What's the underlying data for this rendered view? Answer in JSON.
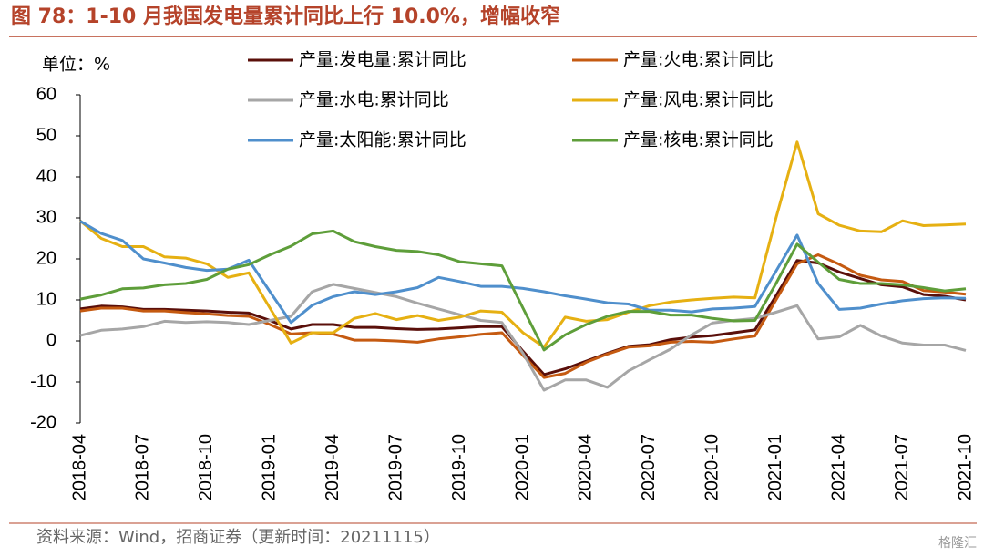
{
  "chart_data": {
    "type": "line",
    "title": "图 78：1-10 月我国发电量累计同比上行 10.0%，增幅收窄",
    "y_label": "单位：%",
    "source": "资料来源：Wind，招商证券（更新时间：20211115）",
    "watermark": "格隆汇",
    "ylim": [
      -20,
      60
    ],
    "yticks": [
      60,
      50,
      40,
      30,
      20,
      10,
      0,
      -10,
      -20
    ],
    "negative_tick_color": "#FF0000",
    "grid": false,
    "categories": [
      "2018-04",
      null,
      null,
      "2018-07",
      null,
      null,
      "2018-10",
      null,
      null,
      "2019-01",
      null,
      null,
      "2019-04",
      null,
      null,
      "2019-07",
      null,
      null,
      "2019-10",
      null,
      null,
      "2020-01",
      null,
      null,
      "2020-04",
      null,
      null,
      "2020-07",
      null,
      null,
      "2020-10",
      null,
      null,
      "2021-01",
      null,
      null,
      "2021-04",
      null,
      null,
      "2021-07",
      null,
      null,
      "2021-10"
    ],
    "series": [
      {
        "name": "产量:发电量:累计同比",
        "color": "#5A0F0A",
        "values": [
          7.8,
          8.5,
          8.3,
          7.7,
          7.7,
          7.5,
          7.3,
          7.0,
          6.8,
          5.0,
          2.9,
          4.0,
          4.0,
          3.3,
          3.3,
          3.0,
          2.8,
          2.9,
          3.2,
          3.5,
          3.5,
          -2.5,
          -8.2,
          -6.8,
          -4.9,
          -3.0,
          -1.3,
          -0.9,
          0.3,
          0.9,
          1.3,
          2.0,
          2.7,
          11.0,
          19.6,
          19.0,
          16.8,
          15.2,
          13.7,
          13.2,
          11.3,
          10.9,
          10.0
        ]
      },
      {
        "name": "产量:火电:累计同比",
        "color": "#C55A11",
        "values": [
          7.3,
          8.0,
          8.0,
          7.3,
          7.3,
          6.9,
          6.6,
          6.2,
          6.0,
          4.0,
          1.7,
          2.0,
          1.7,
          0.2,
          0.2,
          0.0,
          -0.3,
          0.5,
          1.0,
          1.6,
          2.0,
          -3.5,
          -8.9,
          -7.9,
          -5.2,
          -3.2,
          -1.5,
          -1.2,
          -0.3,
          -0.1,
          -0.3,
          0.5,
          1.2,
          10.0,
          18.8,
          21.0,
          18.7,
          16.0,
          14.9,
          14.5,
          12.3,
          11.9,
          11.4
        ]
      },
      {
        "name": "产量:水电:累计同比",
        "color": "#A6A6A6",
        "values": [
          1.3,
          2.6,
          2.9,
          3.5,
          4.8,
          4.5,
          4.7,
          4.5,
          4.0,
          5.0,
          6.0,
          12.0,
          13.8,
          12.8,
          11.8,
          10.8,
          9.2,
          7.8,
          6.4,
          5.0,
          4.5,
          -3.0,
          -12.0,
          -9.5,
          -9.5,
          -11.3,
          -7.3,
          -4.6,
          -2.0,
          1.5,
          4.4,
          5.0,
          5.5,
          7.0,
          8.6,
          0.5,
          1.0,
          3.8,
          1.2,
          -0.5,
          -1.0,
          -1.0,
          -2.3
        ]
      },
      {
        "name": "产量:风电:累计同比",
        "color": "#E6B012",
        "values": [
          29.3,
          25.0,
          23.0,
          23.0,
          20.5,
          20.2,
          18.8,
          15.5,
          16.6,
          8.0,
          -0.5,
          2.0,
          2.0,
          5.5,
          6.7,
          5.2,
          6.2,
          5.0,
          5.8,
          7.3,
          7.0,
          2.0,
          -1.5,
          5.8,
          4.8,
          5.2,
          7.0,
          8.6,
          9.5,
          10.0,
          10.4,
          10.7,
          10.5,
          30.0,
          48.5,
          31.0,
          28.2,
          26.8,
          26.6,
          29.3,
          28.1,
          28.3,
          28.5
        ]
      },
      {
        "name": "产量:太阳能:累计同比",
        "color": "#4F8FCC",
        "values": [
          29.2,
          26.2,
          24.5,
          20.0,
          19.0,
          17.9,
          17.2,
          17.5,
          19.7,
          12.0,
          4.5,
          8.7,
          10.8,
          12.0,
          11.3,
          12.0,
          13.0,
          15.5,
          14.5,
          13.3,
          13.3,
          12.8,
          12.0,
          11.0,
          10.2,
          9.3,
          9.0,
          7.5,
          7.5,
          7.1,
          7.8,
          8.0,
          8.4,
          17.0,
          25.8,
          14.0,
          7.7,
          8.0,
          9.0,
          9.8,
          10.3,
          10.5,
          10.4
        ]
      },
      {
        "name": "产量:核电:累计同比",
        "color": "#5E9E3A",
        "values": [
          10.2,
          11.2,
          12.7,
          12.9,
          13.7,
          14.0,
          15.0,
          17.5,
          18.6,
          21.0,
          23.1,
          26.1,
          26.8,
          24.2,
          23.0,
          22.1,
          21.8,
          21.0,
          19.3,
          18.8,
          18.3,
          8.0,
          -2.2,
          1.5,
          4.0,
          6.0,
          7.2,
          7.2,
          6.3,
          6.3,
          5.5,
          4.9,
          5.0,
          14.0,
          23.6,
          19.2,
          15.0,
          14.0,
          14.0,
          13.7,
          13.0,
          12.2,
          12.7
        ]
      }
    ]
  }
}
